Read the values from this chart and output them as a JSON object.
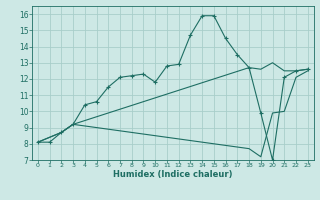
{
  "xlabel": "Humidex (Indice chaleur)",
  "bg_color": "#cde8e5",
  "grid_color": "#a8ceca",
  "line_color": "#1e6e63",
  "xlim": [
    -0.5,
    23.5
  ],
  "ylim": [
    7.0,
    16.5
  ],
  "yticks": [
    7,
    8,
    9,
    10,
    11,
    12,
    13,
    14,
    15,
    16
  ],
  "xticks": [
    0,
    1,
    2,
    3,
    4,
    5,
    6,
    7,
    8,
    9,
    10,
    11,
    12,
    13,
    14,
    15,
    16,
    17,
    18,
    19,
    20,
    21,
    22,
    23
  ],
  "line1_x": [
    0,
    1,
    2,
    3,
    4,
    5,
    6,
    7,
    8,
    9,
    10,
    11,
    12,
    13,
    14,
    15,
    16,
    17,
    18,
    19,
    20,
    21,
    22,
    23
  ],
  "line1_y": [
    8.1,
    8.1,
    8.7,
    9.2,
    10.4,
    10.6,
    11.5,
    12.1,
    12.2,
    12.3,
    11.8,
    12.8,
    12.9,
    14.7,
    15.9,
    15.9,
    14.5,
    13.5,
    12.7,
    9.9,
    7.0,
    12.1,
    12.5,
    12.6
  ],
  "line2_x": [
    0,
    2,
    3,
    18,
    19,
    20,
    21,
    22,
    23
  ],
  "line2_y": [
    8.1,
    8.7,
    9.2,
    12.7,
    12.6,
    13.0,
    12.5,
    12.5,
    12.6
  ],
  "line3_x": [
    0,
    2,
    3,
    18,
    19,
    20,
    21,
    22,
    23
  ],
  "line3_y": [
    8.1,
    8.7,
    9.2,
    7.7,
    7.2,
    9.9,
    10.0,
    12.1,
    12.5
  ]
}
